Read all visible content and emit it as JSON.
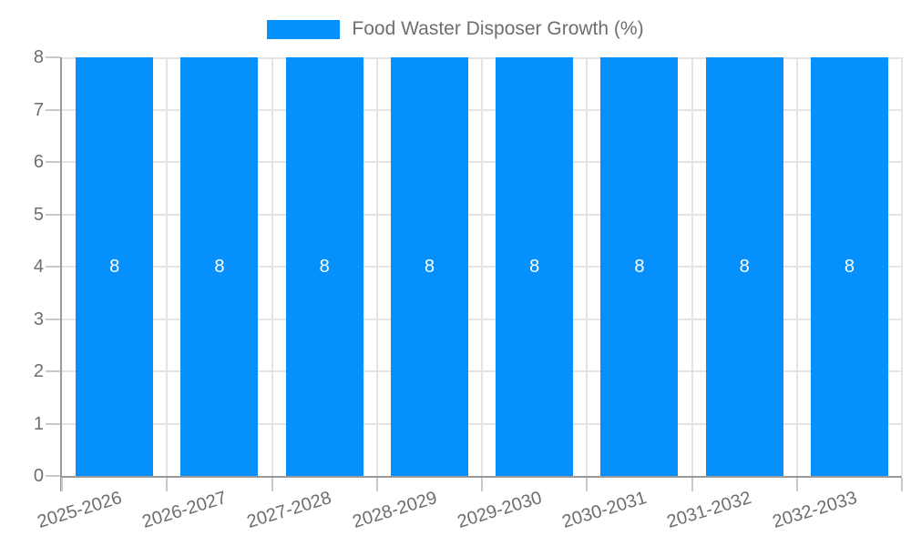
{
  "legend": {
    "label": "Food Waster Disposer Growth (%)"
  },
  "chart_data": {
    "type": "bar",
    "title": "Food Waster Disposer Growth (%)",
    "categories": [
      "2025-2026",
      "2026-2027",
      "2027-2028",
      "2028-2029",
      "2029-2030",
      "2030-2031",
      "2031-2032",
      "2032-2033"
    ],
    "series": [
      {
        "name": "Food Waster Disposer Growth (%)",
        "values": [
          8,
          8,
          8,
          8,
          8,
          8,
          8,
          8
        ]
      }
    ],
    "bar_value_labels": [
      "8",
      "8",
      "8",
      "8",
      "8",
      "8",
      "8",
      "8"
    ],
    "xlabel": "",
    "ylabel": "",
    "ylim": [
      0,
      8
    ],
    "yticks": [
      0,
      1,
      2,
      3,
      4,
      5,
      6,
      7,
      8
    ],
    "grid": true,
    "legend_position": "top",
    "colors": {
      "bar": "#0590fb",
      "axis": "#9a9a9a",
      "grid": "#e4e4e4",
      "tick": "#c9c9c9",
      "label": "#6e6e6e",
      "value_label": "#ffffff",
      "background": "#ffffff"
    }
  }
}
